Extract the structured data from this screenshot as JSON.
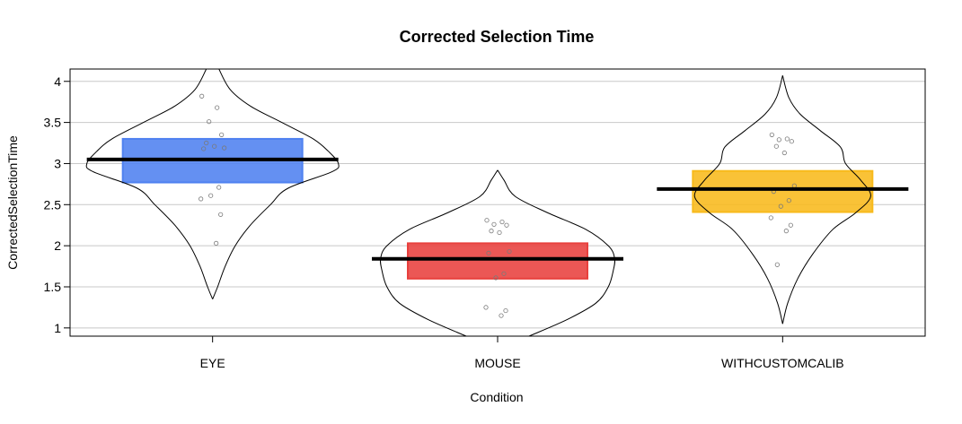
{
  "chart_data": {
    "type": "pirate",
    "title": "Corrected Selection Time",
    "xlabel": "Condition",
    "ylabel": "CorrectedSelectionTime",
    "ylim": [
      0.9,
      4.15
    ],
    "yticks": [
      1,
      1.5,
      2,
      2.5,
      3,
      3.5,
      4
    ],
    "ytick_labels": [
      "1",
      "1.5",
      "2",
      "2.5",
      "3",
      "3.5",
      "4"
    ],
    "grid": true,
    "categories": [
      "EYE",
      "MOUSE",
      "WITHCUSTOMCALIB"
    ],
    "series": [
      {
        "category": "EYE",
        "color": "#4F81F0",
        "mean": 3.05,
        "band": [
          2.77,
          3.3
        ],
        "range": [
          1.35,
          4.15
        ],
        "violin": [
          [
            1.35,
            0.0
          ],
          [
            1.5,
            0.04
          ],
          [
            1.75,
            0.1
          ],
          [
            2.0,
            0.18
          ],
          [
            2.25,
            0.3
          ],
          [
            2.5,
            0.46
          ],
          [
            2.7,
            0.6
          ],
          [
            2.9,
            0.95
          ],
          [
            3.0,
            1.0
          ],
          [
            3.15,
            0.92
          ],
          [
            3.3,
            0.8
          ],
          [
            3.5,
            0.55
          ],
          [
            3.7,
            0.3
          ],
          [
            3.9,
            0.14
          ],
          [
            4.15,
            0.05
          ]
        ],
        "points": [
          3.82,
          3.68,
          3.51,
          3.35,
          3.25,
          3.21,
          3.19,
          3.18,
          2.71,
          2.61,
          2.57,
          2.38,
          2.03
        ]
      },
      {
        "category": "MOUSE",
        "color": "#E8403D",
        "mean": 1.84,
        "band": [
          1.6,
          2.03
        ],
        "range": [
          0.9,
          2.92
        ],
        "violin": [
          [
            0.9,
            0.25
          ],
          [
            1.1,
            0.55
          ],
          [
            1.3,
            0.78
          ],
          [
            1.5,
            0.88
          ],
          [
            1.7,
            0.92
          ],
          [
            1.85,
            0.93
          ],
          [
            2.0,
            0.88
          ],
          [
            2.2,
            0.7
          ],
          [
            2.4,
            0.4
          ],
          [
            2.6,
            0.14
          ],
          [
            2.8,
            0.05
          ],
          [
            2.92,
            0.0
          ]
        ],
        "points": [
          2.31,
          2.29,
          2.26,
          2.25,
          2.18,
          2.16,
          1.93,
          1.91,
          1.66,
          1.61,
          1.25,
          1.21,
          1.15
        ]
      },
      {
        "category": "WITHCUSTOMCALIB",
        "color": "#F8BA1B",
        "mean": 2.69,
        "band": [
          2.41,
          2.91
        ],
        "range": [
          1.05,
          4.07
        ],
        "violin": [
          [
            1.05,
            0.0
          ],
          [
            1.3,
            0.04
          ],
          [
            1.6,
            0.12
          ],
          [
            1.9,
            0.24
          ],
          [
            2.2,
            0.4
          ],
          [
            2.4,
            0.58
          ],
          [
            2.6,
            0.7
          ],
          [
            2.8,
            0.62
          ],
          [
            3.0,
            0.5
          ],
          [
            3.2,
            0.46
          ],
          [
            3.4,
            0.3
          ],
          [
            3.6,
            0.14
          ],
          [
            3.8,
            0.05
          ],
          [
            4.07,
            0.0
          ]
        ],
        "points": [
          3.35,
          3.3,
          3.29,
          3.27,
          3.21,
          3.13,
          2.73,
          2.66,
          2.55,
          2.48,
          2.34,
          2.25,
          2.18,
          1.77
        ]
      }
    ]
  }
}
